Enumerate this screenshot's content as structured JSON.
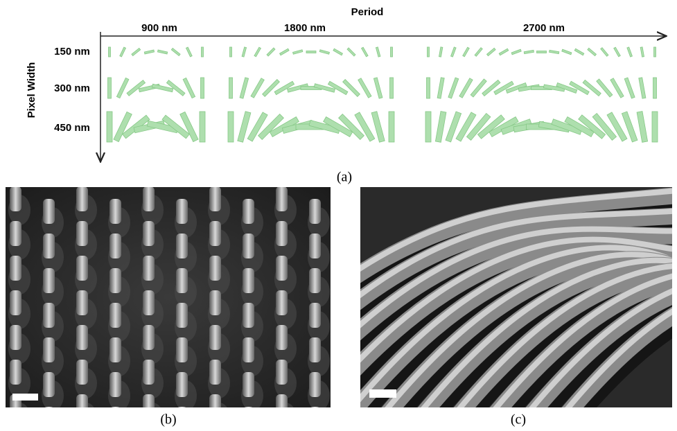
{
  "figure": {
    "x_axis_title": "Period",
    "y_axis_title": "Pixel Width",
    "periods": [
      "900 nm",
      "1800 nm",
      "2700 nm"
    ],
    "pixel_widths": [
      "150 nm",
      "300 nm",
      "450 nm"
    ],
    "panel_labels": [
      "(a)",
      "(b)",
      "(c)"
    ]
  }
}
